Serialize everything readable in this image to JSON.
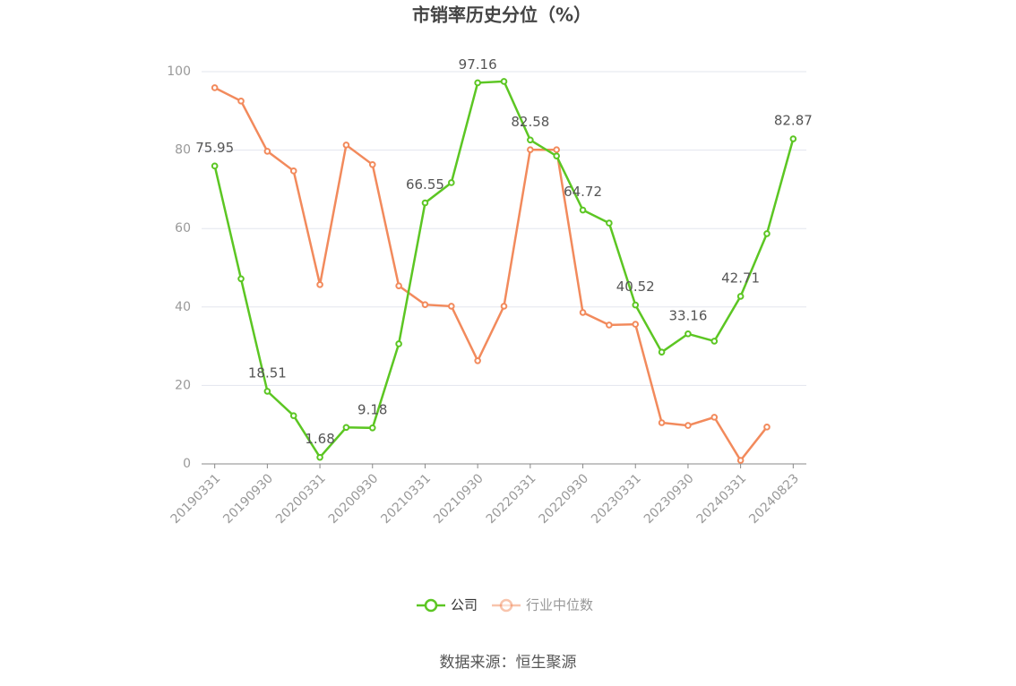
{
  "chart_data": {
    "type": "line",
    "title": "市销率历史分位（%）",
    "categories": [
      "20190331",
      null,
      "20190930",
      null,
      "20200331",
      null,
      "20200930",
      null,
      "20210331",
      null,
      "20210930",
      null,
      "20220331",
      null,
      "20220930",
      null,
      "20230331",
      null,
      "20230930",
      null,
      "20240331",
      null,
      "20240823"
    ],
    "series": [
      {
        "name": "公司",
        "color": "#5cc623",
        "values": [
          75.95,
          47.2,
          18.51,
          12.3,
          1.68,
          9.3,
          9.18,
          30.6,
          66.55,
          71.7,
          97.16,
          97.5,
          82.58,
          78.5,
          64.72,
          61.4,
          40.52,
          28.5,
          33.16,
          31.3,
          42.71,
          58.7,
          82.87
        ],
        "value_labels": [
          "75.95",
          null,
          "18.51",
          null,
          "1.68",
          null,
          "9.18",
          null,
          "66.55",
          null,
          "97.16",
          null,
          "82.58",
          null,
          "64.72",
          null,
          "40.52",
          null,
          "33.16",
          null,
          "42.71",
          null,
          "82.87"
        ]
      },
      {
        "name": "行业中位数",
        "color": "#f28a5c",
        "values": [
          95.9,
          92.5,
          79.7,
          74.7,
          45.7,
          81.3,
          76.3,
          45.4,
          40.6,
          40.2,
          26.3,
          40.2,
          80.1,
          80.1,
          38.6,
          35.4,
          35.6,
          10.5,
          9.8,
          11.9,
          0.9,
          9.4,
          null
        ]
      }
    ],
    "ylim": [
      0,
      100
    ],
    "yticks": [
      0,
      20,
      40,
      60,
      80,
      100
    ],
    "grid": true,
    "legend": "bottom",
    "source": "数据来源：恒生聚源"
  }
}
